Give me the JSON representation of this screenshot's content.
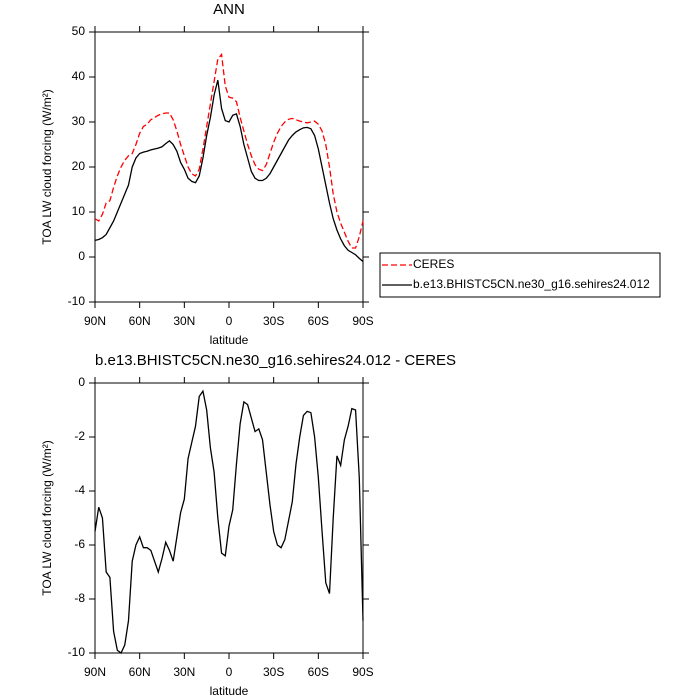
{
  "chart_data": [
    {
      "type": "line",
      "title": "ANN",
      "xlabel": "latitude",
      "ylabel": "TOA LW cloud forcing (W/m²)",
      "xlim": [
        90,
        -90
      ],
      "ylim": [
        -10,
        50
      ],
      "xticks": [
        {
          "value": 90,
          "label": "90N"
        },
        {
          "value": 60,
          "label": "60N"
        },
        {
          "value": 30,
          "label": "30N"
        },
        0,
        {
          "value": -30,
          "label": "30S"
        },
        {
          "value": -60,
          "label": "60S"
        },
        {
          "value": -90,
          "label": "90S"
        }
      ],
      "yticks": [
        -10,
        0,
        10,
        20,
        30,
        40,
        50
      ],
      "legend": "outside-right",
      "x": [
        90,
        87.5,
        85,
        82.5,
        80,
        77.5,
        75,
        72.5,
        70,
        67.5,
        65,
        62.5,
        60,
        57.5,
        55,
        52.5,
        50,
        47.5,
        45,
        42.5,
        40,
        37.5,
        35,
        32.5,
        30,
        27.5,
        25,
        22.5,
        20,
        17.5,
        15,
        12.5,
        10,
        7.5,
        5,
        2.5,
        0,
        -2.5,
        -5,
        -7.5,
        -10,
        -12.5,
        -15,
        -17.5,
        -20,
        -22.5,
        -25,
        -27.5,
        -30,
        -32.5,
        -35,
        -37.5,
        -40,
        -42.5,
        -45,
        -47.5,
        -50,
        -52.5,
        -55,
        -57.5,
        -60,
        -62.5,
        -65,
        -67.5,
        -70,
        -72.5,
        -75,
        -77.5,
        -80,
        -82.5,
        -85,
        -87.5,
        -90
      ],
      "series": [
        {
          "name": "CERES",
          "color": "#ff0000",
          "line_style": "dashed",
          "values": [
            8.5,
            8,
            9.5,
            12,
            12.5,
            15.5,
            18,
            20,
            21.5,
            22.5,
            23,
            25,
            27.5,
            29,
            29.5,
            30.5,
            31,
            31.5,
            31.8,
            32,
            32,
            30.5,
            28,
            25,
            22.5,
            20,
            18.5,
            18,
            19.5,
            24,
            29,
            34,
            39,
            44,
            45,
            38,
            35.5,
            35.3,
            34.5,
            31,
            28,
            25,
            22.5,
            20.5,
            19.5,
            19.2,
            20.5,
            23,
            25.5,
            27.5,
            29,
            30,
            30.6,
            30.8,
            30.5,
            30.2,
            30,
            29.8,
            30,
            30.2,
            29.5,
            28,
            25,
            20,
            14,
            10,
            7.5,
            5.5,
            3.5,
            2,
            2,
            4.5,
            8
          ]
        },
        {
          "name": "b.e13.BHISTC5CN.ne30_g16.sehires24.012",
          "color": "#000000",
          "line_style": "solid",
          "values": [
            3.7,
            3.9,
            4.3,
            5,
            6.5,
            8,
            10,
            12,
            14,
            16,
            20,
            22,
            23,
            23.3,
            23.5,
            23.8,
            24,
            24.2,
            24.5,
            25.2,
            25.8,
            25,
            23.5,
            21,
            19.5,
            17.5,
            16.8,
            16.5,
            18,
            22,
            27,
            31,
            36,
            39.3,
            33,
            30.3,
            30,
            31.5,
            31.8,
            29,
            25,
            22,
            19,
            17.5,
            17,
            17,
            17.5,
            18.5,
            20,
            21.5,
            23,
            24.5,
            26,
            27,
            27.8,
            28.3,
            28.7,
            28.8,
            28.5,
            27,
            24,
            20,
            16,
            12,
            8.5,
            6,
            4,
            2.5,
            1.5,
            1,
            0.5,
            -0.3,
            -1
          ]
        }
      ]
    },
    {
      "type": "line",
      "title": "b.e13.BHISTC5CN.ne30_g16.sehires24.012 - CERES",
      "xlabel": "latitude",
      "ylabel": "TOA LW cloud forcing (W/m²)",
      "xlim": [
        90,
        -90
      ],
      "ylim": [
        -10,
        0
      ],
      "xticks": [
        {
          "value": 90,
          "label": "90N"
        },
        {
          "value": 60,
          "label": "60N"
        },
        {
          "value": 30,
          "label": "30N"
        },
        0,
        {
          "value": -30,
          "label": "30S"
        },
        {
          "value": -60,
          "label": "60S"
        },
        {
          "value": -90,
          "label": "90S"
        }
      ],
      "yticks": [
        -10,
        -8,
        -6,
        -4,
        -2,
        0
      ],
      "color": "#000000",
      "x": [
        90,
        87.5,
        85,
        82.5,
        80,
        77.5,
        75,
        72.5,
        70,
        67.5,
        65,
        62.5,
        60,
        57.5,
        55,
        52.5,
        50,
        47.5,
        45,
        42.5,
        40,
        37.5,
        35,
        32.5,
        30,
        27.5,
        25,
        22.5,
        20,
        17.5,
        15,
        12.5,
        10,
        7.5,
        5,
        2.5,
        0,
        -2.5,
        -5,
        -7.5,
        -10,
        -12.5,
        -15,
        -17.5,
        -20,
        -22.5,
        -25,
        -27.5,
        -30,
        -32.5,
        -35,
        -37.5,
        -40,
        -42.5,
        -45,
        -47.5,
        -50,
        -52.5,
        -55,
        -57.5,
        -60,
        -62.5,
        -65,
        -67.5,
        -70,
        -72.5,
        -75,
        -77.5,
        -80,
        -82.5,
        -85,
        -87.5,
        -90
      ],
      "values": [
        -5.5,
        -4.6,
        -5,
        -7,
        -7.2,
        -9.2,
        -9.9,
        -10,
        -9.7,
        -8.8,
        -6.6,
        -6,
        -5.7,
        -6.1,
        -6.1,
        -6.2,
        -6.6,
        -7,
        -6.5,
        -5.9,
        -6.2,
        -6.6,
        -5.7,
        -4.8,
        -4.3,
        -2.8,
        -2.2,
        -1.6,
        -0.5,
        -0.3,
        -1,
        -2.4,
        -3.3,
        -5,
        -6.3,
        -6.4,
        -5.3,
        -4.7,
        -3,
        -1.5,
        -0.7,
        -0.8,
        -1.3,
        -1.8,
        -1.7,
        -2.1,
        -3.3,
        -4.5,
        -5.5,
        -6,
        -6.1,
        -5.8,
        -5.1,
        -4.4,
        -3,
        -2,
        -1.2,
        -1.05,
        -1.1,
        -2,
        -3.5,
        -5.5,
        -7.4,
        -7.8,
        -5,
        -2.7,
        -3.05,
        -2.1,
        -1.6,
        -0.95,
        -1,
        -3.5,
        -8.8
      ]
    }
  ]
}
